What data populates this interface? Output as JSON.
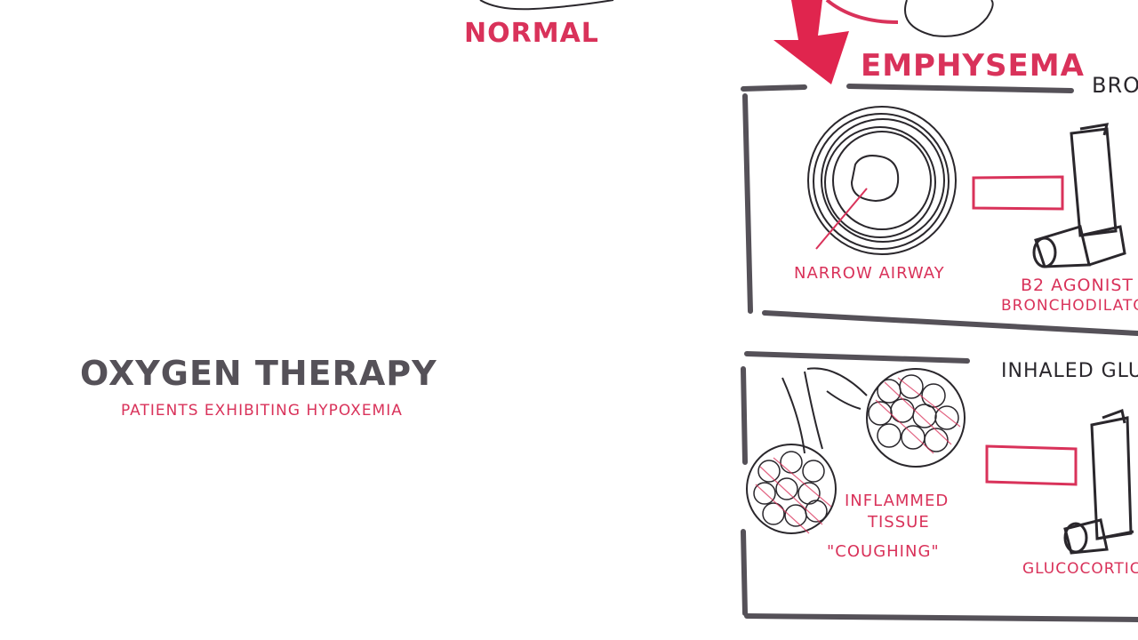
{
  "top": {
    "normal_label": "NORMAL",
    "emphysema_label": "EMPHYSEMA",
    "broncho_header": "BRO"
  },
  "left": {
    "oxygen_title": "OXYGEN THERAPY",
    "oxygen_note": "PATIENTS EXHIBITING HYPOXEMIA"
  },
  "panel1": {
    "airway_label": "NARROW AIRWAY",
    "drug_line1": "B2 AGONIST",
    "drug_line2": "BRONCHODILATO"
  },
  "panel2": {
    "header": "INHALED GLU",
    "tissue_line1": "INFLAMMED",
    "tissue_line2": "TISSUE",
    "symptom": "\"COUGHING\"",
    "drug": "GLUCOCORTIC"
  },
  "colors": {
    "red": "#d9325a",
    "gray": "#555158",
    "ink": "#2a272c"
  }
}
